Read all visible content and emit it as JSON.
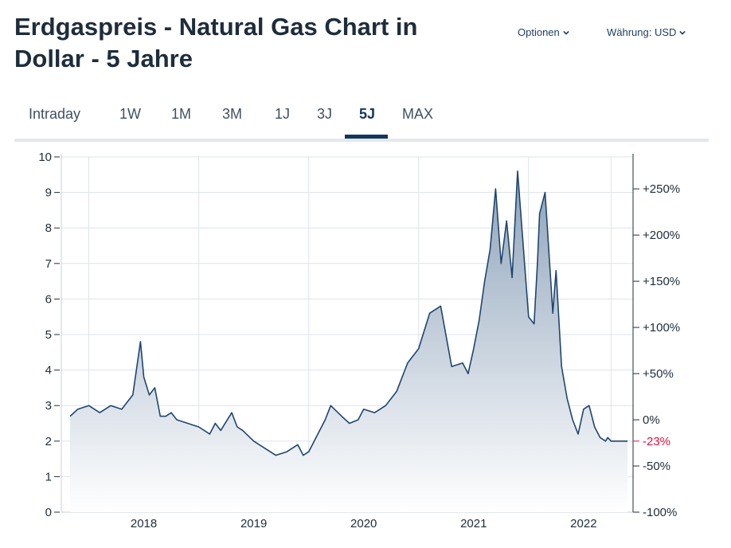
{
  "header": {
    "title": "Erdgaspreis - Natural Gas Chart in Dollar - 5 Jahre",
    "options_label": "Optionen",
    "currency_label": "Währung: USD",
    "chevron_icon": "chevron-down-icon"
  },
  "tabs": [
    {
      "label": "Intraday",
      "active": false
    },
    {
      "label": "1W",
      "active": false
    },
    {
      "label": "1M",
      "active": false
    },
    {
      "label": "3M",
      "active": false
    },
    {
      "label": "1J",
      "active": false
    },
    {
      "label": "3J",
      "active": false
    },
    {
      "label": "5J",
      "active": true
    },
    {
      "label": "MAX",
      "active": false
    }
  ],
  "colors": {
    "line": "#1f4571",
    "fill_top": "#8ea3ba",
    "fill_bottom": "#ffffff",
    "grid": "#dde3ea",
    "active_tab": "#14365c",
    "negative_change": "#e3103f"
  },
  "chart_data": {
    "type": "area",
    "x_axis": {
      "tick_labels": [
        "2018",
        "2019",
        "2020",
        "2021",
        "2022"
      ],
      "range": [
        2017.75,
        2022.95
      ]
    },
    "y_axis_left": {
      "min": 0,
      "max": 10,
      "ticks": [
        0,
        1,
        2,
        3,
        4,
        5,
        6,
        7,
        8,
        9,
        10
      ]
    },
    "y_axis_right": {
      "tick_labels": [
        "-100%",
        "-50%",
        "0%",
        "+50%",
        "+100%",
        "+150%",
        "+200%",
        "+250%"
      ],
      "tick_values": [
        -100,
        -50,
        0,
        50,
        100,
        150,
        200,
        250
      ],
      "current_change": "-23%",
      "base_price": 2.6
    },
    "grid": true,
    "series": [
      {
        "x": [
          2017.83,
          2017.9,
          2018.0,
          2018.1,
          2018.2,
          2018.3,
          2018.4,
          2018.47,
          2018.5,
          2018.55,
          2018.6,
          2018.65,
          2018.7,
          2018.75,
          2018.8,
          2018.9,
          2019.0,
          2019.1,
          2019.15,
          2019.2,
          2019.3,
          2019.35,
          2019.4,
          2019.5,
          2019.6,
          2019.7,
          2019.8,
          2019.9,
          2019.95,
          2020.0,
          2020.1,
          2020.15,
          2020.2,
          2020.3,
          2020.37,
          2020.45,
          2020.5,
          2020.6,
          2020.7,
          2020.8,
          2020.9,
          2021.0,
          2021.1,
          2021.2,
          2021.3,
          2021.4,
          2021.45,
          2021.5,
          2021.55,
          2021.6,
          2021.65,
          2021.7,
          2021.75,
          2021.8,
          2021.85,
          2021.9,
          2022.0,
          2022.05,
          2022.08,
          2022.1,
          2022.15,
          2022.2,
          2022.22,
          2022.25,
          2022.3,
          2022.35,
          2022.4,
          2022.45,
          2022.5,
          2022.55,
          2022.6,
          2022.65,
          2022.7,
          2022.72,
          2022.75,
          2022.8,
          2022.85,
          2022.9
        ],
        "y": [
          2.7,
          2.9,
          3.0,
          2.8,
          3.0,
          2.9,
          3.3,
          4.8,
          3.8,
          3.3,
          3.5,
          2.7,
          2.7,
          2.8,
          2.6,
          2.5,
          2.4,
          2.2,
          2.5,
          2.3,
          2.8,
          2.4,
          2.3,
          2.0,
          1.8,
          1.6,
          1.7,
          1.9,
          1.6,
          1.7,
          2.3,
          2.6,
          3.0,
          2.7,
          2.5,
          2.6,
          2.9,
          2.8,
          3.0,
          3.4,
          4.2,
          4.6,
          5.6,
          5.8,
          4.1,
          4.2,
          3.9,
          4.6,
          5.4,
          6.5,
          7.4,
          9.1,
          7.0,
          8.2,
          6.6,
          9.6,
          5.5,
          5.3,
          7.0,
          8.4,
          9.0,
          6.6,
          5.6,
          6.8,
          4.1,
          3.2,
          2.6,
          2.2,
          2.9,
          3.0,
          2.4,
          2.1,
          2.0,
          2.1,
          2.0,
          2.0,
          2.0,
          2.0
        ]
      }
    ]
  }
}
